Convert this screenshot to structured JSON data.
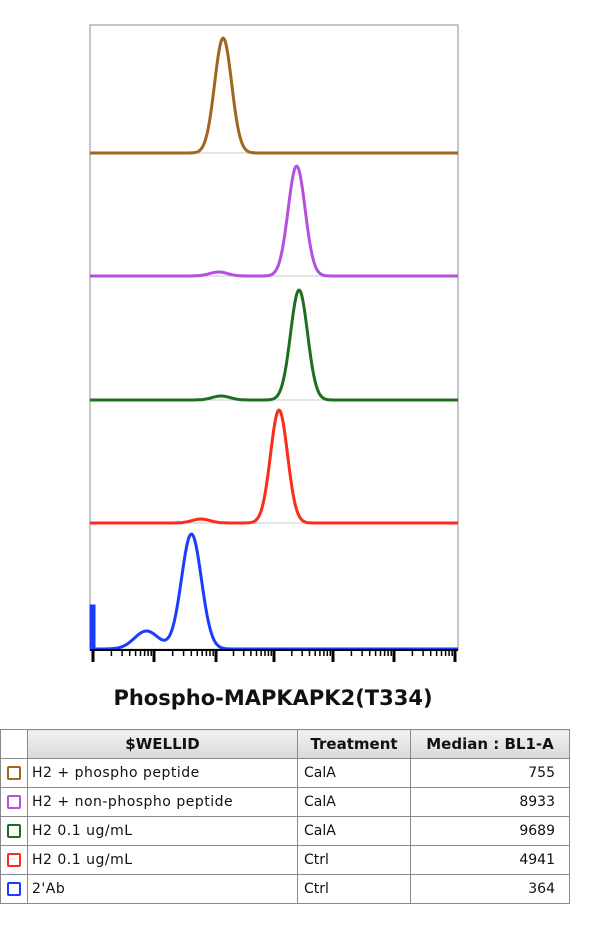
{
  "chart_data": {
    "type": "histogram-overlay",
    "x_scale": "logicle",
    "x_axis_label": "Phospho-MAPKAPK2(T334)",
    "layout": "staggered offset histograms, one per sample",
    "series": [
      {
        "name": "H2 + phospho peptide",
        "color": "#a0651f",
        "median": 755,
        "peak_at_median": true
      },
      {
        "name": "H2 + non-phospho peptide",
        "color": "#b44fe0",
        "median": 8933,
        "small_low_peak": true
      },
      {
        "name": "H2 0.1 ug/mL",
        "color": "#1f6e1f",
        "median": 9689,
        "small_low_peak": true
      },
      {
        "name": "H2 0.1 ug/mL",
        "color": "#ff2a1a",
        "median": 4941,
        "small_low_peak": true
      },
      {
        "name": "2'Ab",
        "color": "#1a3cff",
        "median": 364,
        "spike_at_axis_min": true
      }
    ]
  },
  "legend": {
    "headers": {
      "wellid": "$WELLID",
      "treatment": "Treatment",
      "median": "Median : BL1-A"
    },
    "rows": [
      {
        "name": "H2 + phospho peptide",
        "treatment": "CalA",
        "median": "755",
        "color": "#a0651f"
      },
      {
        "name": "H2 + non-phospho peptide",
        "treatment": "CalA",
        "median": "8933",
        "color": "#b44fe0"
      },
      {
        "name": "H2 0.1 ug/mL",
        "treatment": "CalA",
        "median": "9689",
        "color": "#1f6e1f"
      },
      {
        "name": "H2 0.1 ug/mL",
        "treatment": "Ctrl",
        "median": "4941",
        "color": "#ff2a1a"
      },
      {
        "name": "2'Ab",
        "treatment": "Ctrl",
        "median": "364",
        "color": "#1a3cff"
      }
    ]
  }
}
